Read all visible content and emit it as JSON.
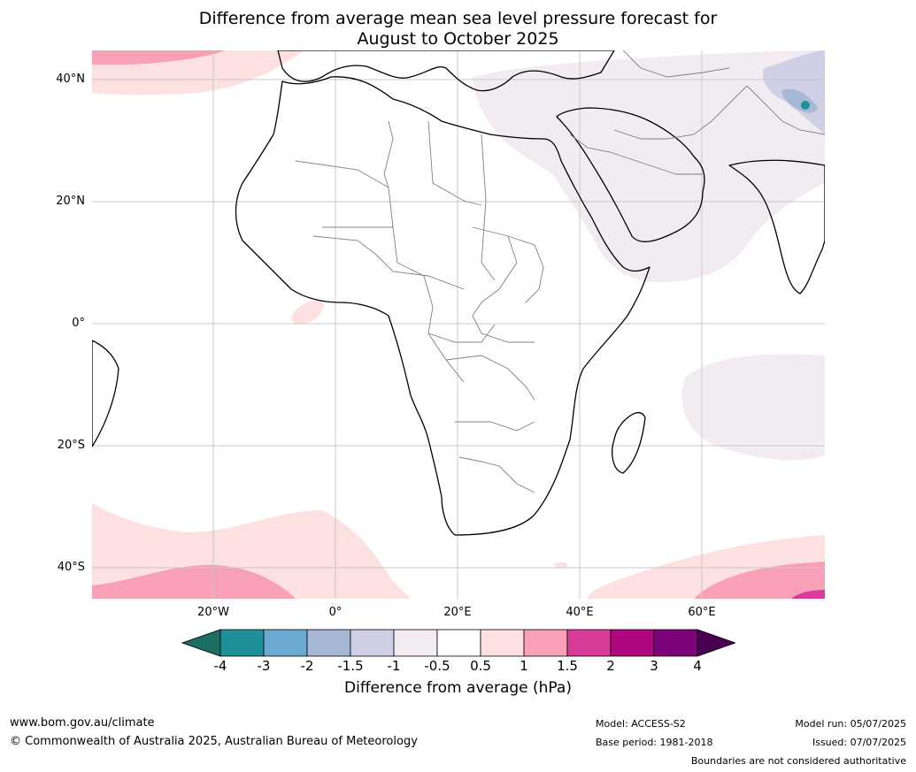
{
  "title": {
    "line1": "Difference from average mean sea level pressure forecast for",
    "line2": "August to October 2025"
  },
  "map": {
    "lat_labels": [
      "40°N",
      "20°N",
      "0°",
      "20°S",
      "40°S"
    ],
    "lon_labels": [
      "20°W",
      "0°",
      "20°E",
      "40°E",
      "60°E"
    ]
  },
  "colorbar": {
    "ticks": [
      "-4",
      "-3",
      "-2",
      "-1.5",
      "-1",
      "-0.5",
      "0.5",
      "1",
      "1.5",
      "2",
      "3",
      "4"
    ],
    "colors": [
      "#1a6e62",
      "#1f8f99",
      "#6aaad0",
      "#a6b8d6",
      "#cfd0e6",
      "#f2ecf2",
      "#ffffff",
      "#fde0e0",
      "#f8a0b8",
      "#d83c98",
      "#b0067e",
      "#7b047a",
      "#4a0052"
    ],
    "label": "Difference from average (hPa)"
  },
  "footer": {
    "url": "www.bom.gov.au/climate",
    "copyright": "© Commonwealth of Australia 2025, Australian Bureau of Meteorology",
    "model": "Model: ACCESS-S2",
    "base_period": "Base period: 1981-2018",
    "model_run": "Model run: 05/07/2025",
    "issued": "Issued: 07/07/2025",
    "disclaimer": "Boundaries are not considered authoritative"
  }
}
